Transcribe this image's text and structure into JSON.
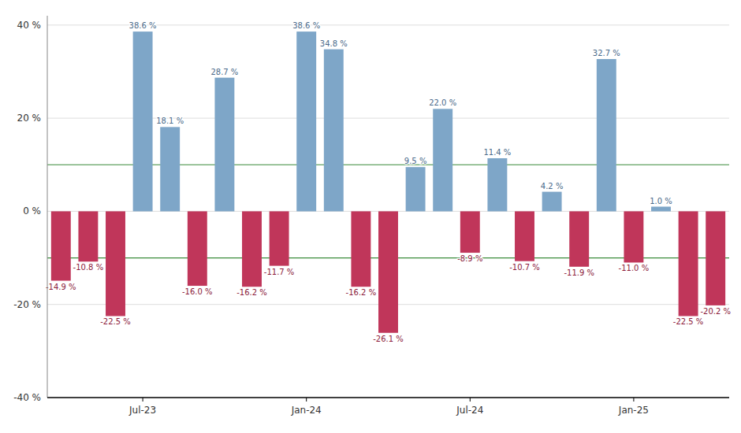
{
  "chart_data": {
    "type": "bar",
    "categories": [
      null,
      null,
      null,
      "Jul-23",
      null,
      null,
      null,
      null,
      null,
      "Jan-24",
      null,
      null,
      null,
      null,
      null,
      "Jul-24",
      null,
      null,
      null,
      null,
      null,
      "Jan-25",
      null,
      null,
      null
    ],
    "values": [
      -14.9,
      -10.8,
      -22.5,
      38.6,
      18.1,
      -16.0,
      28.7,
      -16.2,
      -11.7,
      38.6,
      34.8,
      -16.2,
      -26.1,
      9.5,
      22.0,
      -8.9,
      11.4,
      -10.7,
      4.2,
      -11.9,
      32.7,
      -11.0,
      1.0,
      -22.5,
      -20.2
    ],
    "value_labels": [
      "-14.9 %",
      "-10.8 %",
      "-22.5 %",
      "38.6 %",
      "18.1 %",
      "-16.0 %",
      "28.7 %",
      "-16.2 %",
      "-11.7 %",
      "38.6 %",
      "34.8 %",
      "-16.2 %",
      "-26.1 %",
      "9.5 %",
      "22.0 %",
      "-8.9 %",
      "11.4 %",
      "-10.7 %",
      "4.2 %",
      "-11.9 %",
      "32.7 %",
      "-11.0 %",
      "1.0 %",
      "-22.5 %",
      "-20.2 %"
    ],
    "colors": [
      "#C0365A",
      "#C0365A",
      "#C0365A",
      "#7EA6C8",
      "#7EA6C8",
      "#C0365A",
      "#7EA6C8",
      "#C0365A",
      "#C0365A",
      "#7EA6C8",
      "#7EA6C8",
      "#C0365A",
      "#C0365A",
      "#7EA6C8",
      "#7EA6C8",
      "#C0365A",
      "#7EA6C8",
      "#C0365A",
      "#7EA6C8",
      "#C0365A",
      "#7EA6C8",
      "#C0365A",
      "#7EA6C8",
      "#C0365A",
      "#C0365A"
    ],
    "ylim": [
      -40,
      42
    ],
    "yticks": [
      {
        "value": -40,
        "label": "-40 %"
      },
      {
        "value": -20,
        "label": "-20 %"
      },
      {
        "value": 0,
        "label": "0 %"
      },
      {
        "value": 20,
        "label": "20 %"
      },
      {
        "value": 40,
        "label": "40 %"
      }
    ],
    "hlines": [
      {
        "value": 10.0,
        "color": "#3a8a3a"
      },
      {
        "value": -10.0,
        "color": "#3a8a3a"
      }
    ],
    "grid": true,
    "data_labels": true
  }
}
